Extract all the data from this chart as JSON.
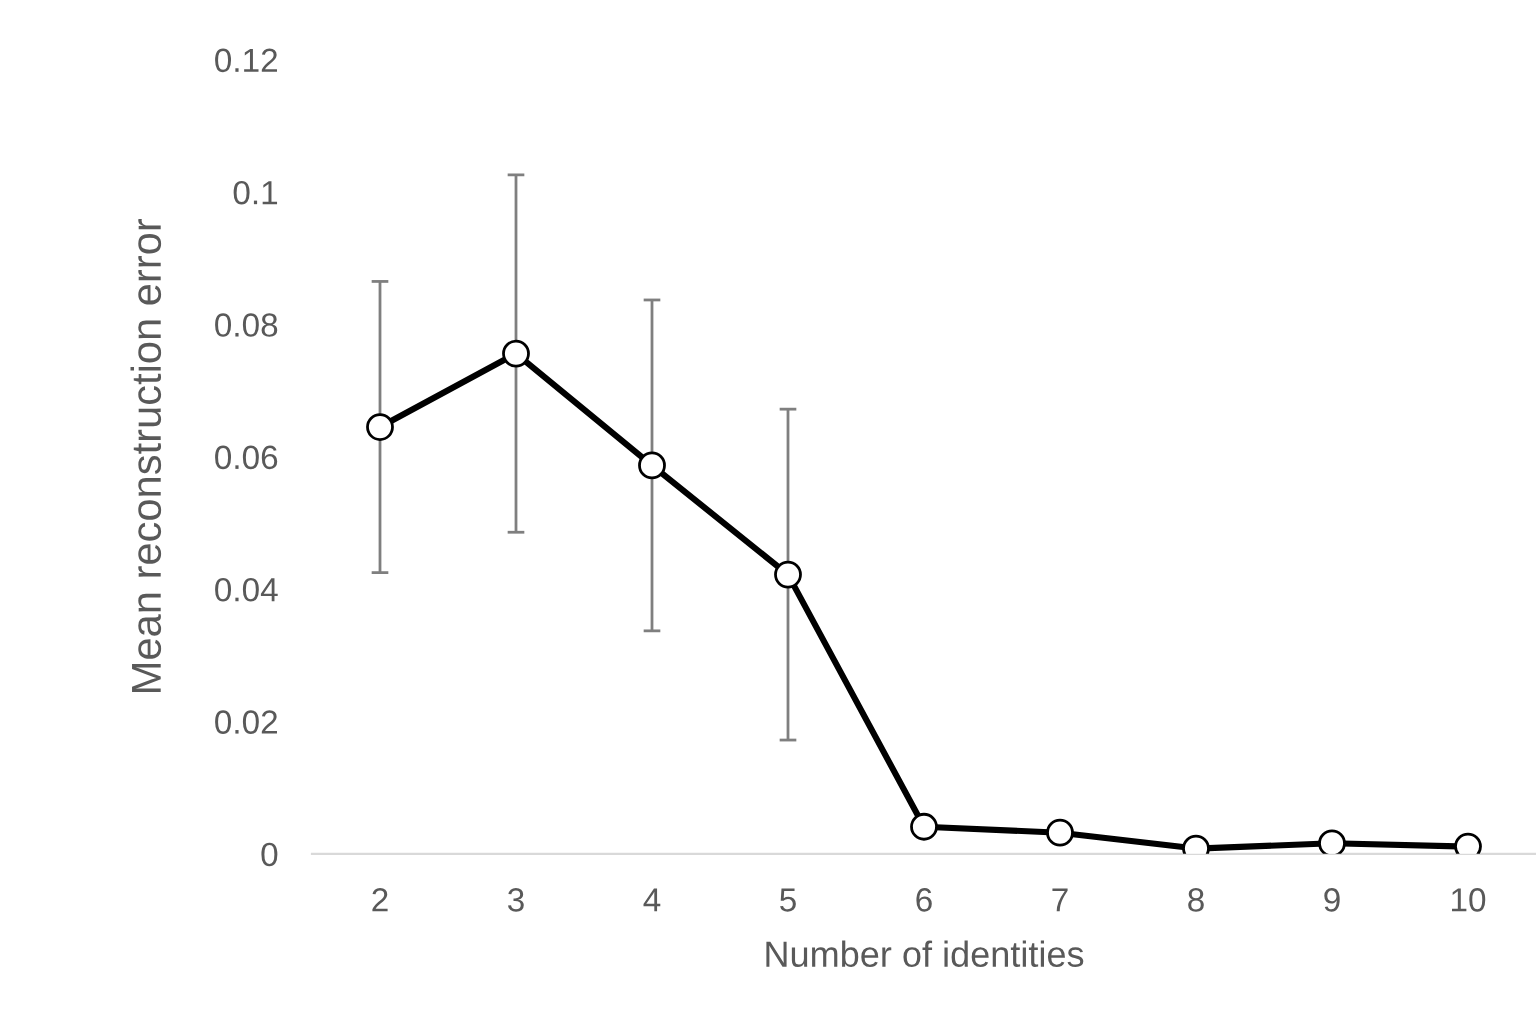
{
  "chart_data": {
    "type": "line",
    "xlabel": "Number of identities",
    "ylabel": "Mean reconstruction error",
    "categories": [
      "2",
      "3",
      "4",
      "5",
      "6",
      "7",
      "8",
      "9",
      "10"
    ],
    "series": [
      {
        "color": "#000000",
        "values": [
          0.0645,
          0.0756,
          0.0587,
          0.0422,
          0.0041,
          0.0032,
          0.0008,
          0.0016,
          0.0011
        ],
        "errors": [
          0.022,
          0.027,
          0.025,
          0.025,
          null,
          null,
          null,
          null,
          null
        ]
      }
    ],
    "ylim": [
      0,
      0.12
    ],
    "yticks": [
      {
        "value": 0,
        "label": "0"
      },
      0.02,
      0.04,
      0.06,
      0.08,
      {
        "value": 0.1,
        "label": "0.1"
      },
      0.12
    ],
    "marker": "circle",
    "line_style": "solid"
  }
}
